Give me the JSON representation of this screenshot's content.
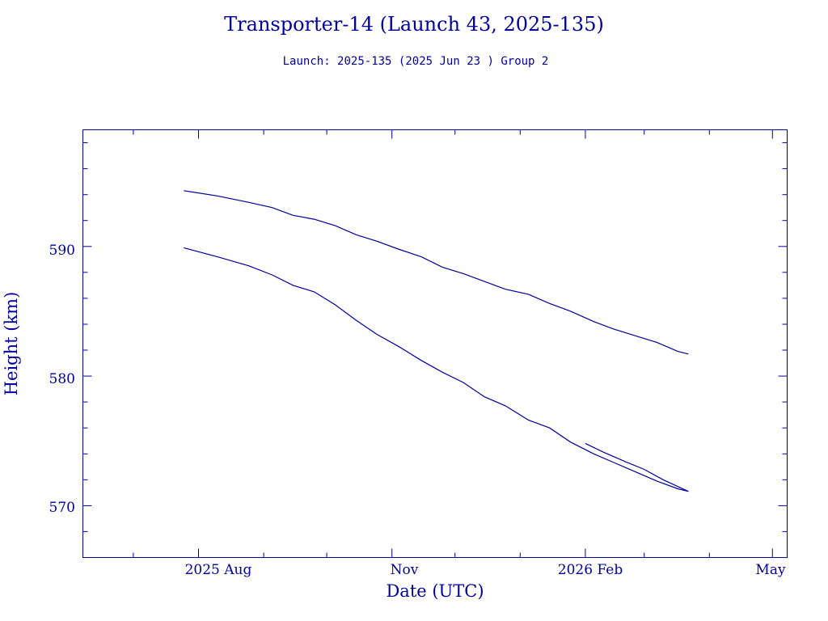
{
  "chart_data": {
    "type": "line",
    "title": "Transporter-14 (Launch 43, 2025-135)",
    "subtitle": "Launch: 2025-135  (2025 Jun 23 )  Group 2",
    "xlabel": "Date (UTC)",
    "ylabel": "Height (km)",
    "x_ticks": [
      "2025 Aug",
      "Nov",
      "2026 Feb",
      "May"
    ],
    "y_ticks": [
      "570",
      "580",
      "590"
    ],
    "xlim": [
      "2025-06-07",
      "2026-05-08"
    ],
    "ylim": [
      566,
      599
    ],
    "grid": false,
    "color": "#00009c",
    "series": [
      {
        "x": [
          "2025-07-25",
          "2025-08-10",
          "2025-08-25",
          "2025-09-05",
          "2025-09-15",
          "2025-09-25",
          "2025-10-05",
          "2025-10-15",
          "2025-10-25",
          "2025-11-04",
          "2025-11-15",
          "2025-11-25",
          "2025-12-05",
          "2025-12-15",
          "2025-12-25",
          "2026-01-05",
          "2026-01-15",
          "2026-01-25",
          "2026-02-05",
          "2026-02-15",
          "2026-02-25",
          "2026-03-07",
          "2026-03-17",
          "2026-03-22"
        ],
        "y": [
          594.3,
          593.9,
          593.4,
          593.0,
          592.4,
          592.1,
          591.6,
          590.9,
          590.4,
          589.8,
          589.2,
          588.4,
          587.9,
          587.3,
          586.7,
          586.3,
          585.6,
          585.0,
          584.2,
          583.6,
          583.1,
          582.6,
          581.9,
          581.7
        ]
      },
      {
        "x": [
          "2025-07-25",
          "2025-08-10",
          "2025-08-25",
          "2025-09-05",
          "2025-09-15",
          "2025-09-25",
          "2025-10-05",
          "2025-10-15",
          "2025-10-25",
          "2025-11-04",
          "2025-11-15",
          "2025-11-25",
          "2025-12-05",
          "2025-12-15",
          "2025-12-25",
          "2026-01-05",
          "2026-01-15",
          "2026-01-25",
          "2026-02-05",
          "2026-02-15",
          "2026-02-25",
          "2026-03-07",
          "2026-03-17",
          "2026-03-22"
        ],
        "y": [
          589.9,
          589.2,
          588.5,
          587.8,
          587.0,
          586.5,
          585.5,
          584.3,
          583.2,
          582.3,
          581.2,
          580.3,
          579.5,
          578.4,
          577.7,
          576.6,
          576.0,
          574.9,
          574.0,
          573.3,
          572.6,
          571.9,
          571.3,
          571.1
        ]
      },
      {
        "x": [
          "2026-02-01",
          "2026-02-10",
          "2026-02-20",
          "2026-03-01",
          "2026-03-10",
          "2026-03-22"
        ],
        "y": [
          574.8,
          574.1,
          573.4,
          572.8,
          572.0,
          571.1
        ]
      }
    ]
  }
}
